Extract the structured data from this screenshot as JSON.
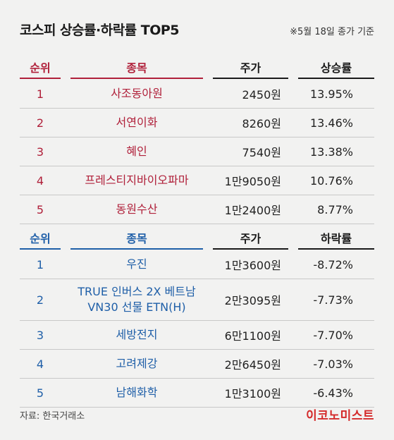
{
  "title": "코스피 상승률·하락률 TOP5",
  "note": "※5월 18일 종가 기준",
  "rise_table": {
    "headers": {
      "rank": "순위",
      "name": "종목",
      "price": "주가",
      "rate": "상승률"
    },
    "rows": [
      {
        "rank": "1",
        "name": "사조동아원",
        "price": "2450원",
        "rate": "13.95%"
      },
      {
        "rank": "2",
        "name": "서연이화",
        "price": "8260원",
        "rate": "13.46%"
      },
      {
        "rank": "3",
        "name": "혜인",
        "price": "7540원",
        "rate": "13.38%"
      },
      {
        "rank": "4",
        "name": "프레스티지바이오파마",
        "price": "1만9050원",
        "rate": "10.76%"
      },
      {
        "rank": "5",
        "name": "동원수산",
        "price": "1만2400원",
        "rate": "8.77%"
      }
    ]
  },
  "fall_table": {
    "headers": {
      "rank": "순위",
      "name": "종목",
      "price": "주가",
      "rate": "하락률"
    },
    "rows": [
      {
        "rank": "1",
        "name": "우진",
        "price": "1만3600원",
        "rate": "-8.72%"
      },
      {
        "rank": "2",
        "name_line1": "TRUE 인버스 2X 베트남",
        "name_line2": "VN30 선물 ETN(H)",
        "price": "2만3095원",
        "rate": "-7.73%"
      },
      {
        "rank": "3",
        "name": "세방전지",
        "price": "6만1100원",
        "rate": "-7.70%"
      },
      {
        "rank": "4",
        "name": "고려제강",
        "price": "2만6450원",
        "rate": "-7.03%"
      },
      {
        "rank": "5",
        "name": "남해화학",
        "price": "1만3100원",
        "rate": "-6.43%"
      }
    ]
  },
  "source": "자료: 한국거래소",
  "logo": "이코노미스트",
  "colors": {
    "rise": "#b0203a",
    "fall": "#1f5fa8",
    "logo": "#d42a2a",
    "background": "#f2f2f1"
  }
}
